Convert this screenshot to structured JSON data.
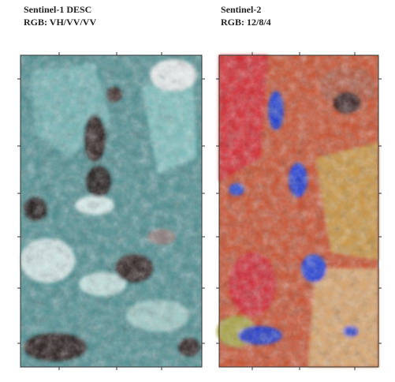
{
  "panels": [
    {
      "title": "Sentinel-1 DESC",
      "subtitle": "RGB: VH/VV/VV"
    },
    {
      "title": "Sentinel-2",
      "subtitle": "RGB: 12/8/4"
    }
  ]
}
